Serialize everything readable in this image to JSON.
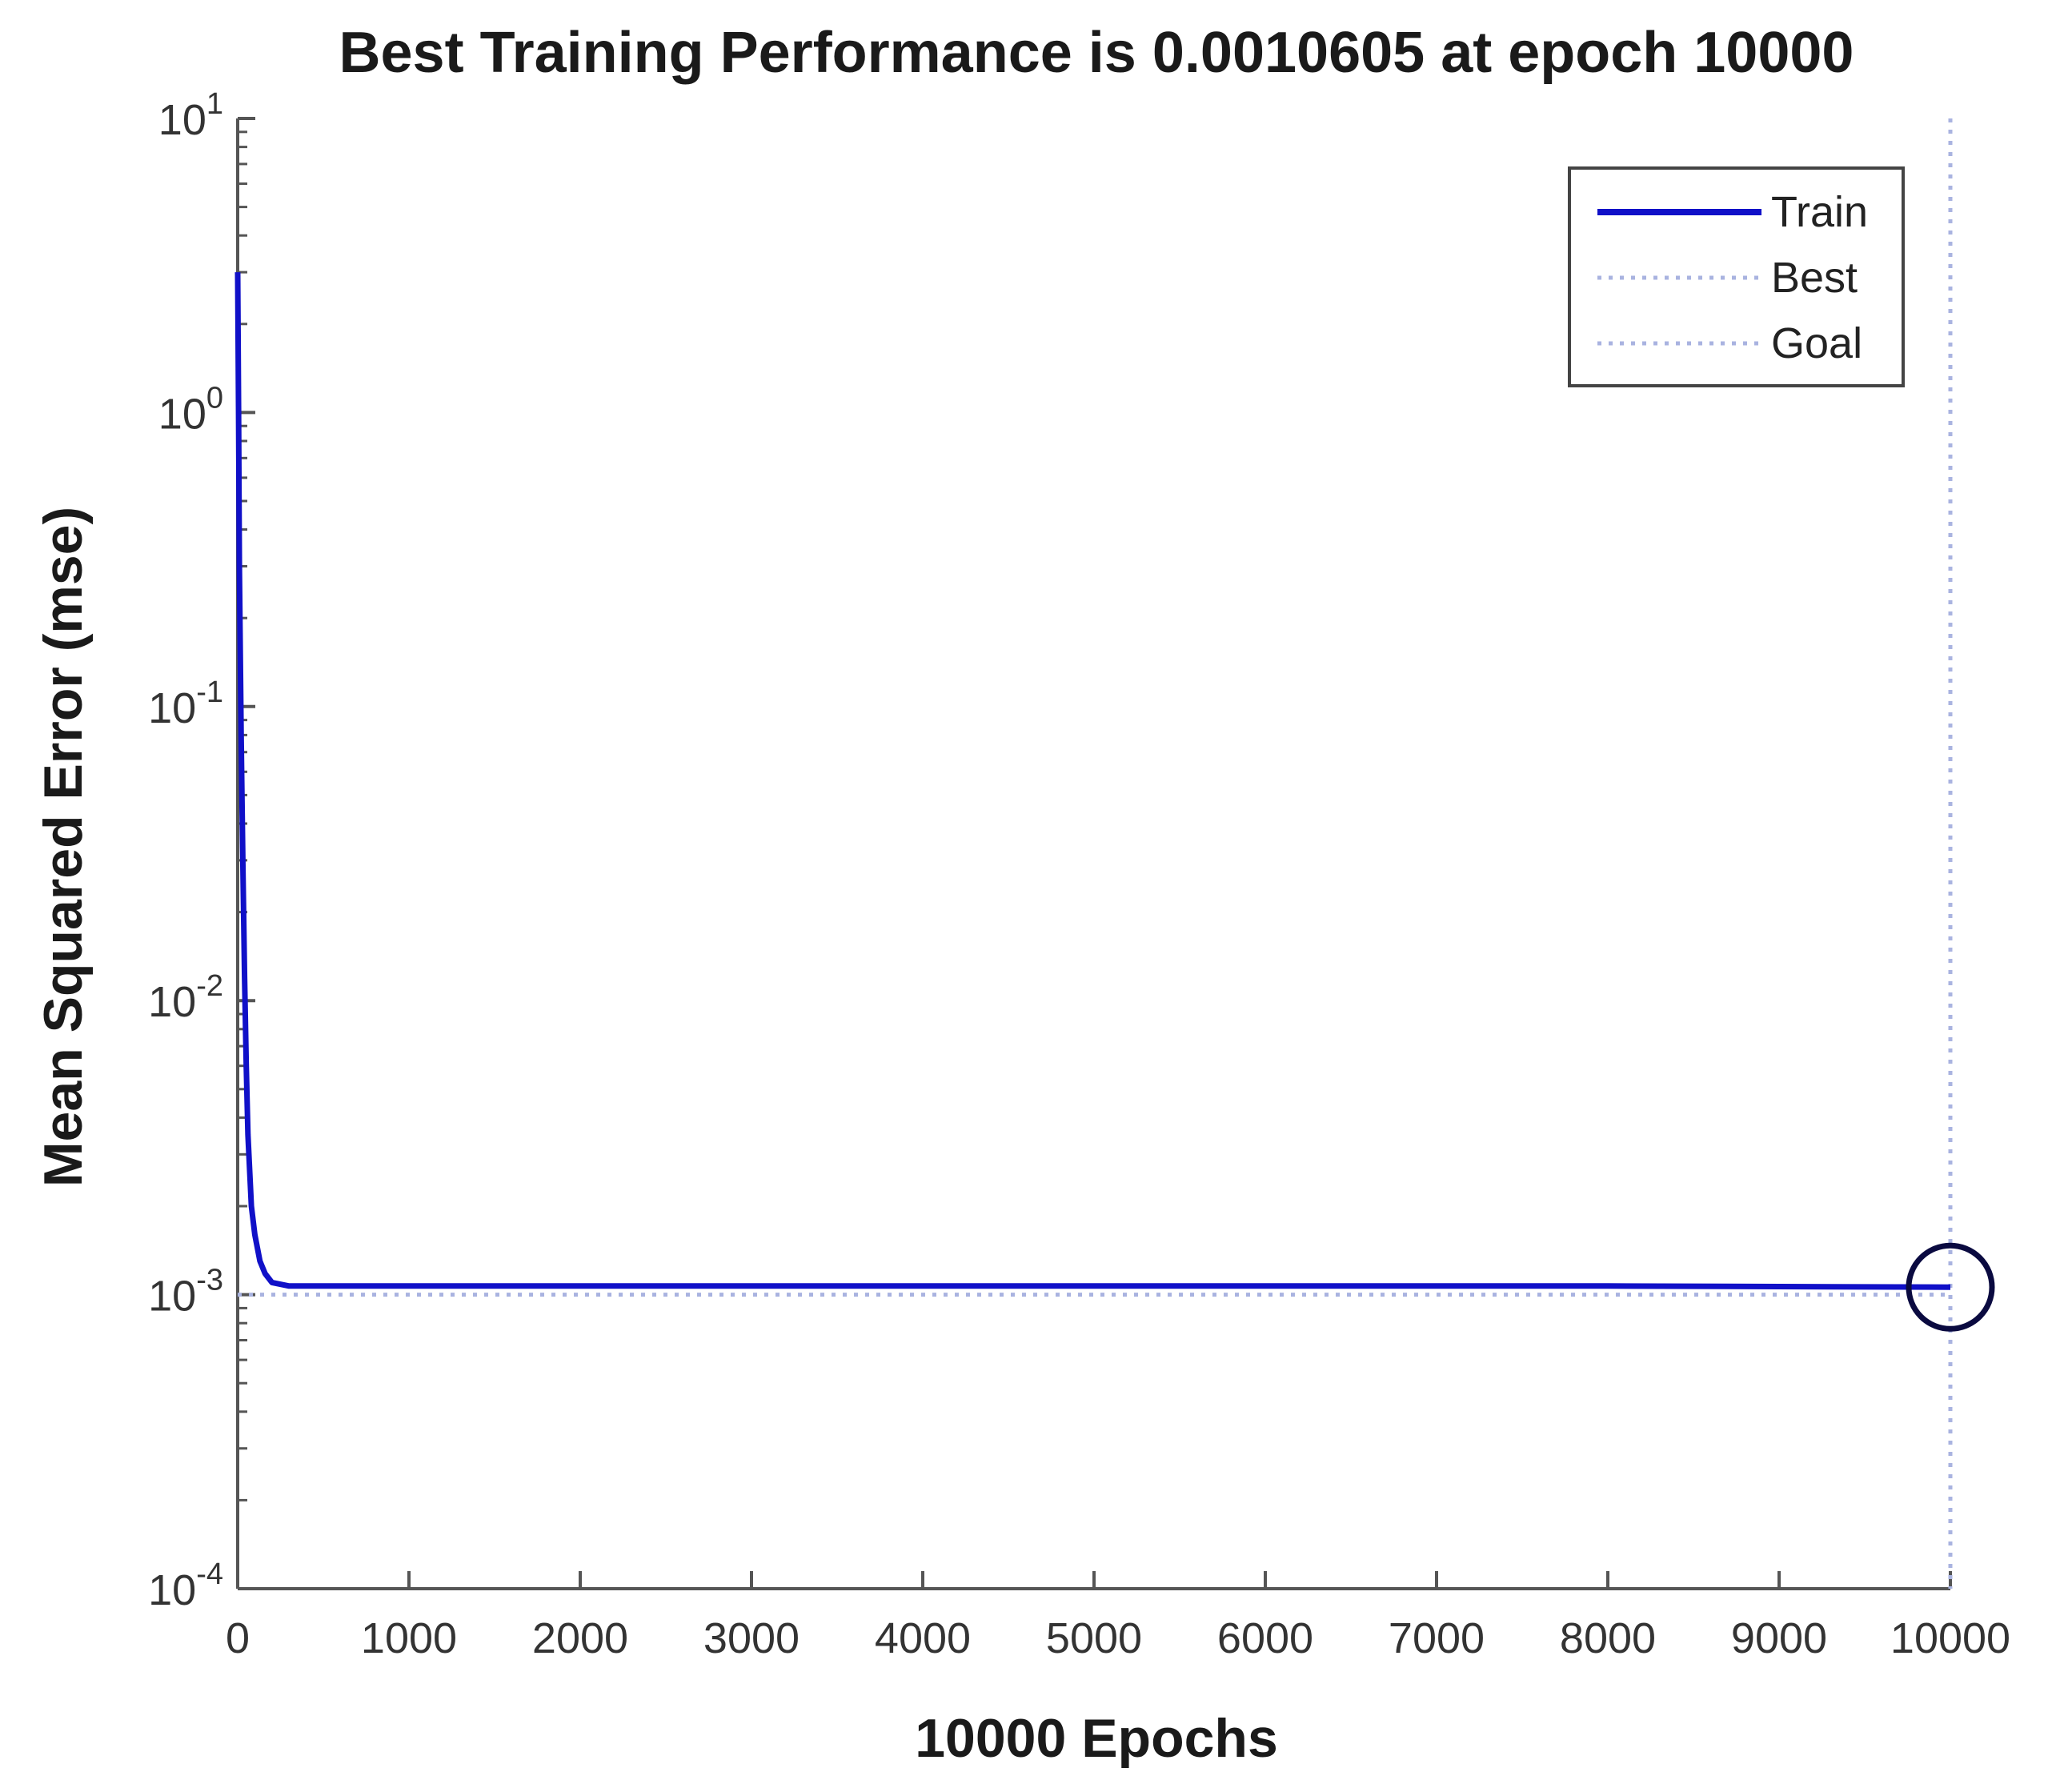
{
  "chart_data": {
    "type": "line",
    "title": "Best Training Performance is 0.0010605 at epoch 10000",
    "xlabel": "10000 Epochs",
    "ylabel": "Mean Squared Error  (mse)",
    "xlim": [
      0,
      10000
    ],
    "ylim": [
      0.0001,
      10
    ],
    "yscale": "log",
    "grid": false,
    "legend_position": "top-right",
    "x_ticks": [
      0,
      1000,
      2000,
      3000,
      4000,
      5000,
      6000,
      7000,
      8000,
      9000,
      10000
    ],
    "x_tick_labels": [
      "0",
      "1000",
      "2000",
      "3000",
      "4000",
      "5000",
      "6000",
      "7000",
      "8000",
      "9000",
      "10000"
    ],
    "y_ticks": [
      {
        "value": 10,
        "base": "10",
        "exp": "1"
      },
      {
        "value": 1,
        "base": "10",
        "exp": "0"
      },
      {
        "value": 0.1,
        "base": "10",
        "exp": "-1"
      },
      {
        "value": 0.01,
        "base": "10",
        "exp": "-2"
      },
      {
        "value": 0.001,
        "base": "10",
        "exp": "-3"
      },
      {
        "value": 0.0001,
        "base": "10",
        "exp": "-4"
      }
    ],
    "series": [
      {
        "name": "Train",
        "style": "solid",
        "color": "#1010c8",
        "x": [
          0,
          5,
          10,
          20,
          30,
          40,
          50,
          60,
          80,
          100,
          130,
          160,
          200,
          300,
          500,
          1000,
          2000,
          4000,
          6000,
          8000,
          10000
        ],
        "y": [
          3.0,
          1.0,
          0.3,
          0.08,
          0.03,
          0.012,
          0.006,
          0.0035,
          0.002,
          0.0016,
          0.0013,
          0.00118,
          0.0011,
          0.00107,
          0.00107,
          0.00107,
          0.00107,
          0.00107,
          0.00107,
          0.00107,
          0.0010605
        ]
      },
      {
        "name": "Best",
        "style": "dotted",
        "color": "#a9b3e0",
        "vertical_at_x": 10000
      },
      {
        "name": "Goal",
        "style": "dotted",
        "color": "#a9b3e0",
        "horizontal_at_y": 0.001
      }
    ],
    "best_marker": {
      "x": 10000,
      "y": 0.0010605,
      "shape": "circle",
      "color": "#0a0a40"
    },
    "colors": {
      "train": "#1010c8",
      "best": "#a9b3e0",
      "goal": "#a9b3e0",
      "axis": "#555555",
      "marker": "#0a0a40"
    }
  }
}
